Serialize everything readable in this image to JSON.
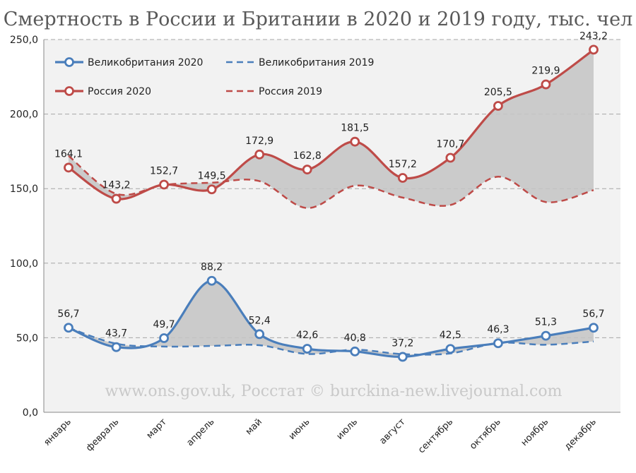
{
  "chart_data": {
    "type": "line",
    "title": "Смертность в России и Британии в 2020 и 2019 году, тыс. чел",
    "watermark": "www.ons.gov.uk, Росстат © burckina-new.livejournal.com",
    "categories": [
      "январь",
      "февраль",
      "март",
      "апрель",
      "май",
      "июнь",
      "июль",
      "август",
      "сентябрь",
      "октябрь",
      "ноябрь",
      "декабрь"
    ],
    "ylim": [
      0,
      250
    ],
    "yticks": [
      "0,0",
      "50,0",
      "100,0",
      "150,0",
      "200,0",
      "250,0"
    ],
    "grid": true,
    "legend_position": "top-left",
    "series": [
      {
        "name": "Великобритания 2020",
        "color": "#4a7ebb",
        "style": "solid-markers",
        "values": [
          56.7,
          43.7,
          49.7,
          88.2,
          52.4,
          42.6,
          40.8,
          37.2,
          42.5,
          46.3,
          51.3,
          56.7
        ],
        "labels": [
          "56,7",
          "43,7",
          "49,7",
          "88,2",
          "52,4",
          "42,6",
          "40,8",
          "37,2",
          "42,5",
          "46,3",
          "51,3",
          "56,7"
        ]
      },
      {
        "name": "Великобритания 2019",
        "color": "#4a7ebb",
        "style": "dashed",
        "values": [
          56.7,
          46.0,
          44.1,
          44.5,
          45.0,
          39.1,
          42.0,
          39.0,
          39.5,
          46.5,
          45.3,
          47.5
        ]
      },
      {
        "name": "Россия 2020",
        "color": "#be4b48",
        "style": "solid-markers",
        "values": [
          164.1,
          143.2,
          152.7,
          149.5,
          172.9,
          162.8,
          181.5,
          157.2,
          170.7,
          205.5,
          219.9,
          243.2
        ],
        "labels": [
          "164,1",
          "143,2",
          "152,7",
          "149,5",
          "172,9",
          "162,8",
          "181,5",
          "157,2",
          "170,7",
          "205,5",
          "219,9",
          "243,2"
        ]
      },
      {
        "name": "Россия 2019",
        "color": "#be4b48",
        "style": "dashed",
        "values": [
          172.0,
          146.5,
          152.5,
          154.0,
          155.0,
          137.0,
          152.0,
          144.0,
          139.0,
          158.0,
          141.0,
          149.0
        ]
      }
    ]
  }
}
